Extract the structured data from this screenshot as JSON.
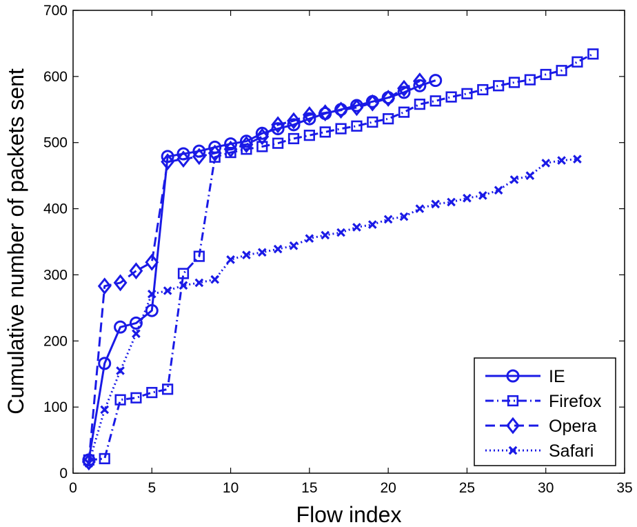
{
  "chart_data": {
    "type": "line",
    "title": "",
    "xlabel": "Flow index",
    "ylabel": "Cumulative number of packets sent",
    "xlim": [
      0,
      35
    ],
    "ylim": [
      0,
      700
    ],
    "xticks": [
      0,
      5,
      10,
      15,
      20,
      25,
      30,
      35
    ],
    "yticks": [
      0,
      100,
      200,
      300,
      400,
      500,
      600,
      700
    ],
    "grid": false,
    "legend": "bottom-right",
    "color": "#1a1ae6",
    "series": [
      {
        "name": "IE",
        "marker": "circle",
        "dash": "solid",
        "x": [
          1,
          2,
          3,
          4,
          5,
          6,
          7,
          8,
          9,
          10,
          11,
          12,
          13,
          14,
          15,
          16,
          17,
          18,
          19,
          20,
          21,
          22,
          23
        ],
        "y": [
          20,
          166,
          221,
          227,
          246,
          479,
          483,
          487,
          493,
          498,
          502,
          514,
          521,
          527,
          536,
          544,
          550,
          556,
          562,
          568,
          576,
          586,
          594
        ]
      },
      {
        "name": "Firefox",
        "marker": "square",
        "dash": "dashdot",
        "x": [
          1,
          2,
          3,
          4,
          5,
          6,
          7,
          8,
          9,
          10,
          11,
          12,
          13,
          14,
          15,
          16,
          17,
          18,
          19,
          20,
          21,
          22,
          23,
          24,
          25,
          26,
          27,
          28,
          29,
          30,
          31,
          32,
          33
        ],
        "y": [
          20,
          22,
          111,
          114,
          122,
          127,
          302,
          328,
          478,
          485,
          490,
          494,
          499,
          506,
          511,
          516,
          521,
          525,
          531,
          536,
          546,
          558,
          563,
          569,
          574,
          580,
          586,
          591,
          595,
          603,
          609,
          622,
          634
        ]
      },
      {
        "name": "Opera",
        "marker": "diamond",
        "dash": "dashed",
        "x": [
          1,
          2,
          3,
          4,
          5,
          6,
          7,
          8,
          9,
          10,
          11,
          12,
          13,
          14,
          15,
          16,
          17,
          18,
          19,
          20,
          21,
          22
        ],
        "y": [
          17,
          283,
          288,
          306,
          319,
          471,
          475,
          479,
          484,
          490,
          497,
          509,
          527,
          533,
          542,
          545,
          549,
          553,
          560,
          567,
          582,
          593
        ]
      },
      {
        "name": "Safari",
        "marker": "x",
        "dash": "dotted",
        "x": [
          1,
          2,
          3,
          4,
          5,
          6,
          7,
          8,
          9,
          10,
          11,
          12,
          13,
          14,
          15,
          16,
          17,
          18,
          19,
          20,
          21,
          22,
          23,
          24,
          25,
          26,
          27,
          28,
          29,
          30,
          31,
          32
        ],
        "y": [
          15,
          96,
          155,
          211,
          271,
          276,
          284,
          288,
          293,
          323,
          330,
          334,
          339,
          344,
          355,
          360,
          364,
          372,
          376,
          384,
          388,
          400,
          407,
          410,
          416,
          420,
          428,
          444,
          450,
          469,
          473,
          475
        ]
      }
    ]
  }
}
